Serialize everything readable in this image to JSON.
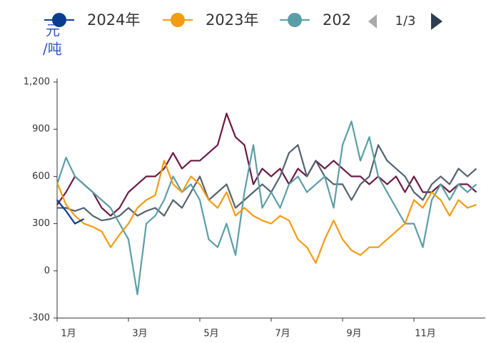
{
  "chart_data": {
    "type": "line",
    "y_label": [
      "元",
      "/吨"
    ],
    "legend_page": "1/3",
    "ylim": [
      -300,
      1200
    ],
    "yticks": [
      -300,
      0,
      300,
      600,
      900,
      {
        "value": 1200,
        "label": "1,200"
      }
    ],
    "xlim": [
      0,
      12
    ],
    "xticks": [
      {
        "value": 0,
        "label": "1月"
      },
      {
        "value": 2,
        "label": "3月"
      },
      {
        "value": 4,
        "label": "5月"
      },
      {
        "value": 6,
        "label": "7月"
      },
      {
        "value": 8,
        "label": "9月"
      },
      {
        "value": 10,
        "label": "11月"
      }
    ],
    "x": [
      0,
      0.25,
      0.5,
      0.75,
      1,
      1.25,
      1.5,
      1.75,
      2,
      2.25,
      2.5,
      2.75,
      3,
      3.25,
      3.5,
      3.75,
      4,
      4.25,
      4.5,
      4.75,
      5,
      5.25,
      5.5,
      5.75,
      6,
      6.25,
      6.5,
      6.75,
      7,
      7.25,
      7.5,
      7.75,
      8,
      8.25,
      8.5,
      8.75,
      9,
      9.25,
      9.5,
      9.75,
      10,
      10.25,
      10.5,
      10.75,
      11,
      11.25,
      11.5,
      11.75
    ],
    "series": [
      {
        "color": "#6b1a45",
        "values": [
          420,
          500,
          600,
          550,
          500,
          400,
          350,
          400,
          500,
          550,
          600,
          600,
          650,
          750,
          650,
          700,
          700,
          750,
          800,
          1000,
          850,
          800,
          550,
          650,
          600,
          650,
          550,
          650,
          600,
          700,
          650,
          700,
          650,
          600,
          600,
          550,
          600,
          550,
          600,
          500,
          600,
          500,
          500,
          550,
          500,
          550,
          550,
          500
        ]
      },
      {
        "color": "#556270",
        "values": [
          400,
          400,
          380,
          400,
          350,
          320,
          330,
          350,
          400,
          350,
          380,
          400,
          350,
          450,
          400,
          500,
          600,
          450,
          500,
          550,
          400,
          450,
          500,
          550,
          500,
          600,
          750,
          800,
          600,
          700,
          600,
          550,
          550,
          450,
          550,
          600,
          800,
          700,
          650,
          600,
          500,
          450,
          550,
          600,
          550,
          650,
          600,
          650
        ]
      },
      {
        "name": "202",
        "color": "#5b9ea6",
        "values": [
          550,
          720,
          600,
          550,
          500,
          450,
          400,
          300,
          200,
          -150,
          300,
          350,
          450,
          600,
          500,
          550,
          450,
          200,
          150,
          300,
          100,
          500,
          800,
          400,
          500,
          400,
          550,
          600,
          500,
          550,
          600,
          400,
          800,
          950,
          700,
          850,
          600,
          500,
          400,
          300,
          300,
          150,
          450,
          550,
          450,
          550,
          500,
          550
        ]
      },
      {
        "name": "2023年",
        "color": "#f39c12",
        "values": [
          560,
          420,
          350,
          300,
          280,
          250,
          150,
          230,
          300,
          400,
          450,
          480,
          700,
          550,
          500,
          600,
          550,
          450,
          400,
          500,
          350,
          400,
          350,
          320,
          300,
          350,
          320,
          200,
          150,
          50,
          200,
          320,
          200,
          130,
          100,
          150,
          150,
          200,
          250,
          300,
          450,
          400,
          500,
          450,
          350,
          450,
          400,
          420
        ]
      },
      {
        "name": "2024年",
        "color": "#0a3d91",
        "values": [
          450,
          380,
          300,
          330,
          null,
          null,
          null,
          null,
          null,
          null,
          null,
          null,
          null,
          null,
          null,
          null,
          null,
          null,
          null,
          null,
          null,
          null,
          null,
          null,
          null,
          null,
          null,
          null,
          null,
          null,
          null,
          null,
          null,
          null,
          null,
          null,
          null,
          null,
          null,
          null,
          null,
          null,
          null,
          null,
          null,
          null,
          null,
          null
        ]
      }
    ]
  }
}
